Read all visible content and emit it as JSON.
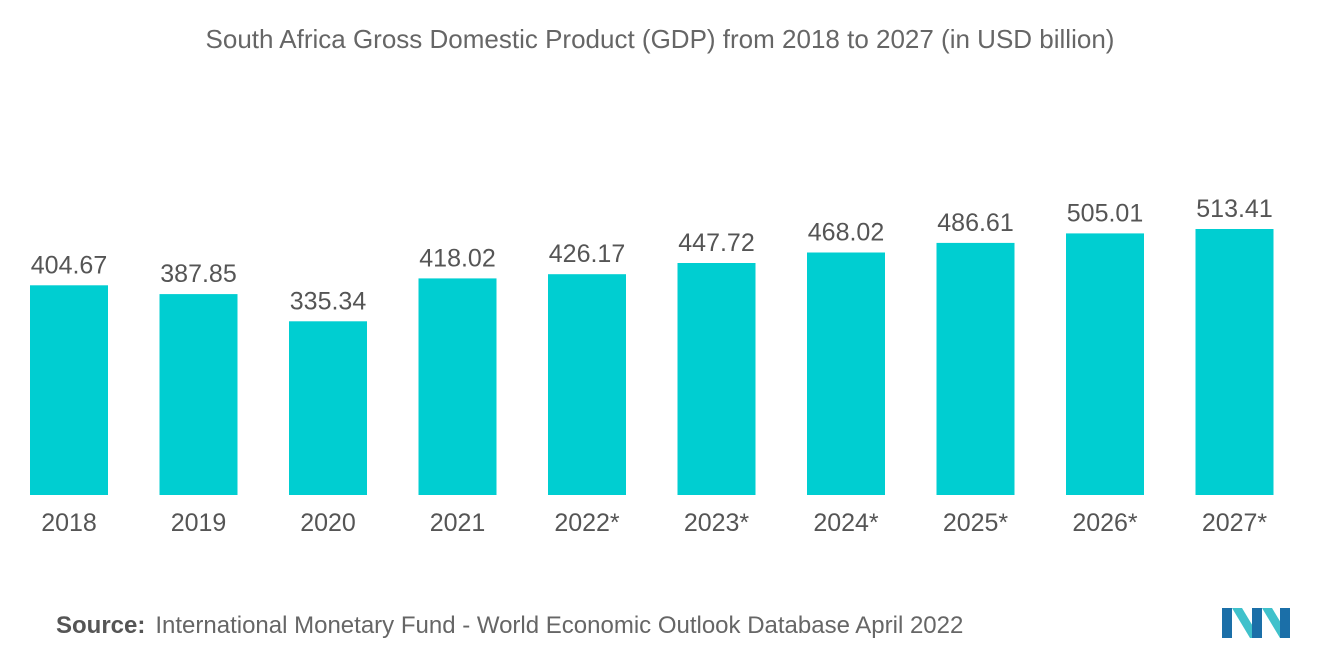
{
  "title": "South Africa Gross Domestic Product (GDP) from 2018 to 2027 (in USD billion)",
  "source": {
    "label": "Source:",
    "text": "International Monetary Fund - World Economic Outlook Database April 2022"
  },
  "colors": {
    "bar": "#00CED1",
    "text": "#555555",
    "title": "#666666"
  },
  "logo": {
    "icon": "mordor-intelligence-logo-icon",
    "color_dark": "#1B6FA8",
    "color_light": "#3FC1CB"
  },
  "chart_data": {
    "type": "bar",
    "categories": [
      "2018",
      "2019",
      "2020",
      "2021",
      "2022*",
      "2023*",
      "2024*",
      "2025*",
      "2026*",
      "2027*"
    ],
    "values": [
      404.67,
      387.85,
      335.34,
      418.02,
      426.17,
      447.72,
      468.02,
      486.61,
      505.01,
      513.41
    ],
    "data_labels": [
      "404.67",
      "387.85",
      "335.34",
      "418.02",
      "426.17",
      "447.72",
      "468.02",
      "486.61",
      "505.01",
      "513.41"
    ],
    "title": "South Africa Gross Domestic Product (GDP) from 2018 to 2027 (in USD billion)",
    "xlabel": "",
    "ylabel": "",
    "ylim": [
      0,
      513.41
    ],
    "grid": false,
    "legend": "none"
  }
}
